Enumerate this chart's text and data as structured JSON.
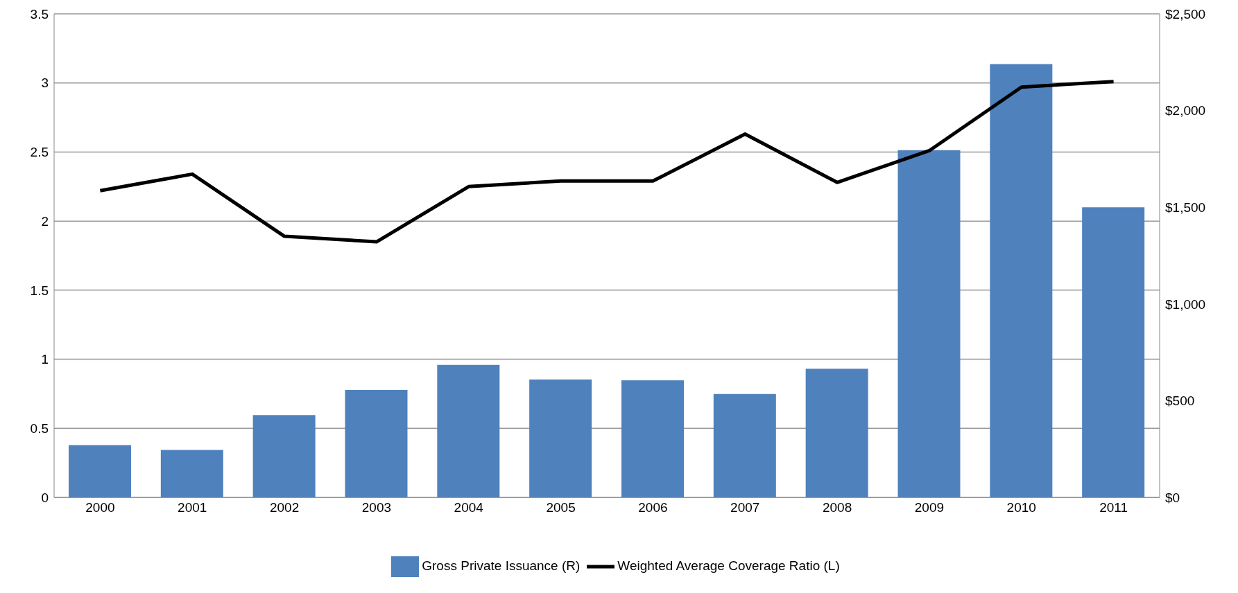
{
  "chart_data": {
    "type": "bar",
    "categories": [
      "2000",
      "2001",
      "2002",
      "2003",
      "2004",
      "2005",
      "2006",
      "2007",
      "2008",
      "2009",
      "2010",
      "2011"
    ],
    "series": [
      {
        "name": "Gross Private Issuance (R)",
        "axis": "y2",
        "color": "#4f81bd",
        "values": [
          270,
          245,
          425,
          555,
          685,
          610,
          605,
          535,
          665,
          1795,
          2240,
          1500
        ]
      },
      {
        "name": "Weighted Average Coverage Ratio (L)",
        "type": "line",
        "color": "#000000",
        "values": [
          2.22,
          2.34,
          1.89,
          1.85,
          2.25,
          2.29,
          2.29,
          2.63,
          2.28,
          2.51,
          2.97,
          3.01
        ]
      }
    ],
    "ylim": [
      0,
      3.5
    ],
    "yticks": [
      0,
      0.5,
      1,
      1.5,
      2,
      2.5,
      3,
      3.5
    ],
    "y2lim": [
      0,
      2500
    ],
    "y2ticks": [
      {
        "value": 0,
        "label": "$0"
      },
      {
        "value": 500,
        "label": "$500"
      },
      {
        "value": 1000,
        "label": "$1,000"
      },
      {
        "value": 1500,
        "label": "$1,500"
      },
      {
        "value": 2000,
        "label": "$2,000"
      },
      {
        "value": 2500,
        "label": "$2,500"
      }
    ],
    "grid": "y",
    "legend": "bottom",
    "marker": "none",
    "line_style": "solid"
  }
}
